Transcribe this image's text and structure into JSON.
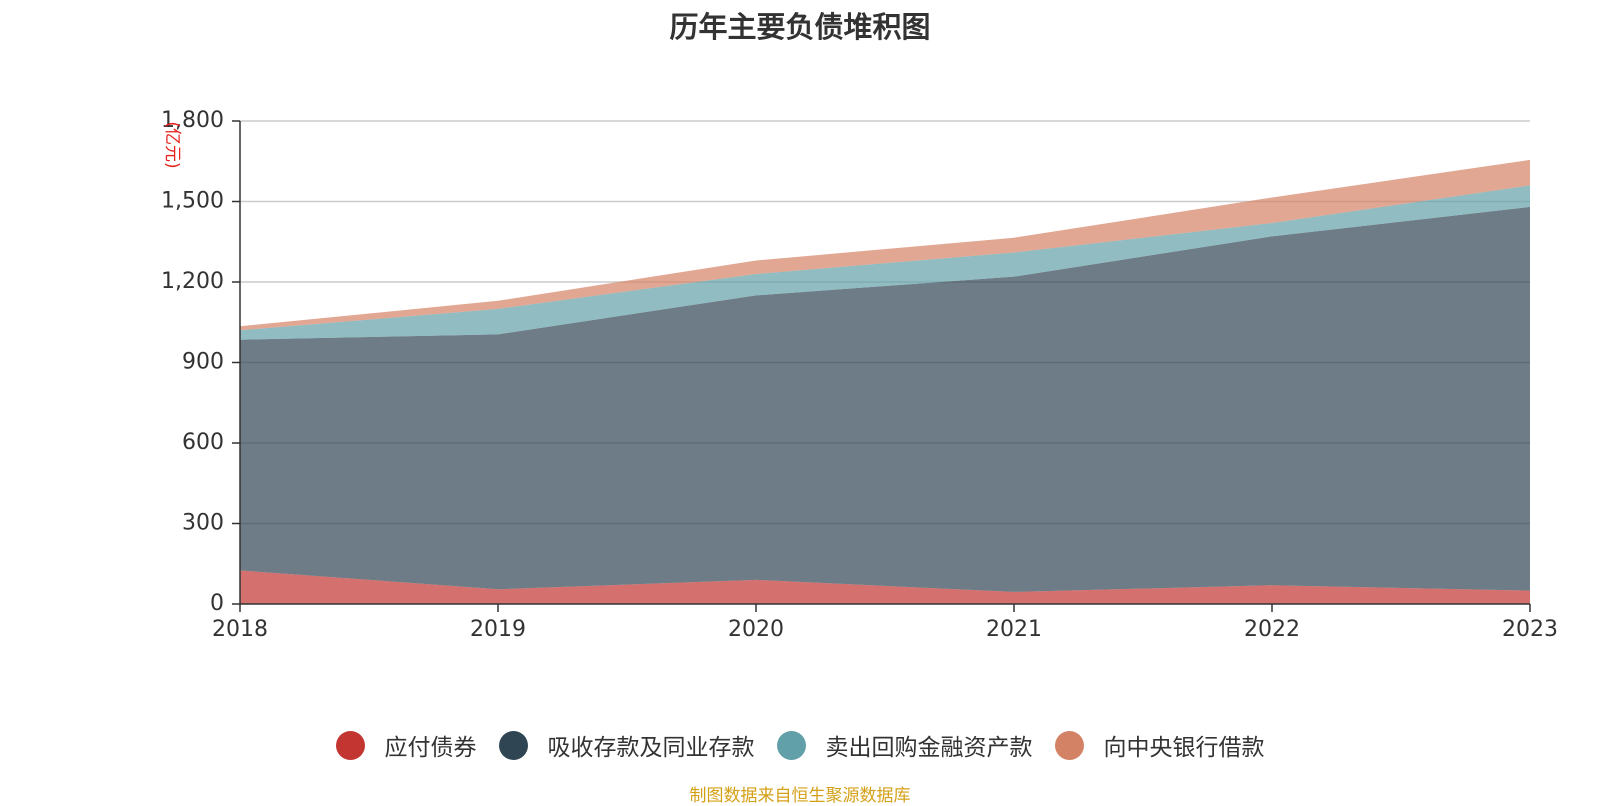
{
  "chart_data": {
    "type": "area",
    "stacked": true,
    "title": "历年主要负债堆积图",
    "unit": "(亿元)",
    "x": [
      "2018",
      "2019",
      "2020",
      "2021",
      "2022",
      "2023"
    ],
    "ylim": [
      0,
      1800
    ],
    "yticks": [
      0,
      300,
      600,
      900,
      1200,
      1500,
      1800
    ],
    "ytick_labels": [
      "0",
      "300",
      "600",
      "900",
      "1,200",
      "1,500",
      "1,800"
    ],
    "grid": true,
    "legend_position": "bottom",
    "series": [
      {
        "name": "应付债券",
        "color": "#c23531",
        "values": [
          125,
          55,
          90,
          45,
          70,
          50
        ]
      },
      {
        "name": "吸收存款及同业存款",
        "color": "#2f4554",
        "values": [
          860,
          950,
          1060,
          1175,
          1300,
          1430
        ]
      },
      {
        "name": "卖出回购金融资产款",
        "color": "#61a0a8",
        "values": [
          35,
          95,
          80,
          90,
          50,
          80
        ]
      },
      {
        "name": "向中央银行借款",
        "color": "#d48265",
        "values": [
          15,
          30,
          50,
          55,
          95,
          95
        ]
      }
    ]
  },
  "source_note": "制图数据来自恒生聚源数据库"
}
